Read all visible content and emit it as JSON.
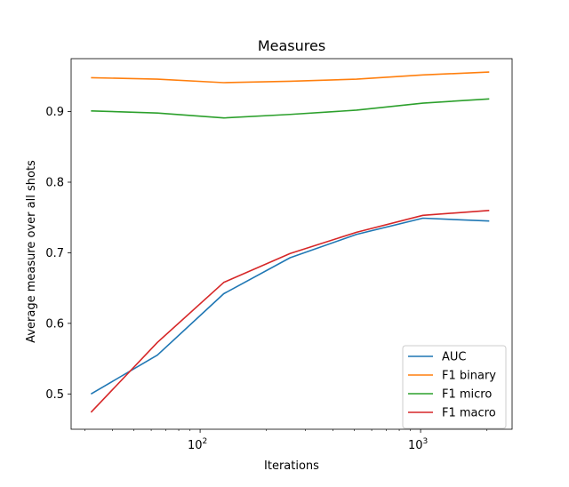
{
  "chart_data": {
    "type": "line",
    "title": "Measures",
    "xlabel": "Iterations",
    "ylabel": "Average measure over all shots",
    "xscale": "log",
    "xlim": [
      26,
      2600
    ],
    "ylim": [
      0.45,
      0.975
    ],
    "xticks": [
      {
        "value": 100,
        "base": "10",
        "exp": "2"
      },
      {
        "value": 1000,
        "base": "10",
        "exp": "3"
      }
    ],
    "yticks": [
      {
        "value": 0.5,
        "label": "0.5"
      },
      {
        "value": 0.6,
        "label": "0.6"
      },
      {
        "value": 0.7,
        "label": "0.7"
      },
      {
        "value": 0.8,
        "label": "0.8"
      },
      {
        "value": 0.9,
        "label": "0.9"
      }
    ],
    "x": [
      32,
      64,
      128,
      256,
      512,
      1024,
      2048
    ],
    "series": [
      {
        "name": "AUC",
        "color": "#1f77b4",
        "values": [
          0.5,
          0.555,
          0.642,
          0.693,
          0.726,
          0.749,
          0.745
        ]
      },
      {
        "name": "F1 binary",
        "color": "#ff7f0e",
        "values": [
          0.948,
          0.946,
          0.941,
          0.943,
          0.946,
          0.952,
          0.956
        ]
      },
      {
        "name": "F1 micro",
        "color": "#2ca02c",
        "values": [
          0.901,
          0.898,
          0.891,
          0.896,
          0.902,
          0.912,
          0.918
        ]
      },
      {
        "name": "F1 macro",
        "color": "#d62728",
        "values": [
          0.474,
          0.573,
          0.658,
          0.699,
          0.729,
          0.753,
          0.76
        ]
      }
    ],
    "legend_position": "lower right",
    "grid": false
  }
}
